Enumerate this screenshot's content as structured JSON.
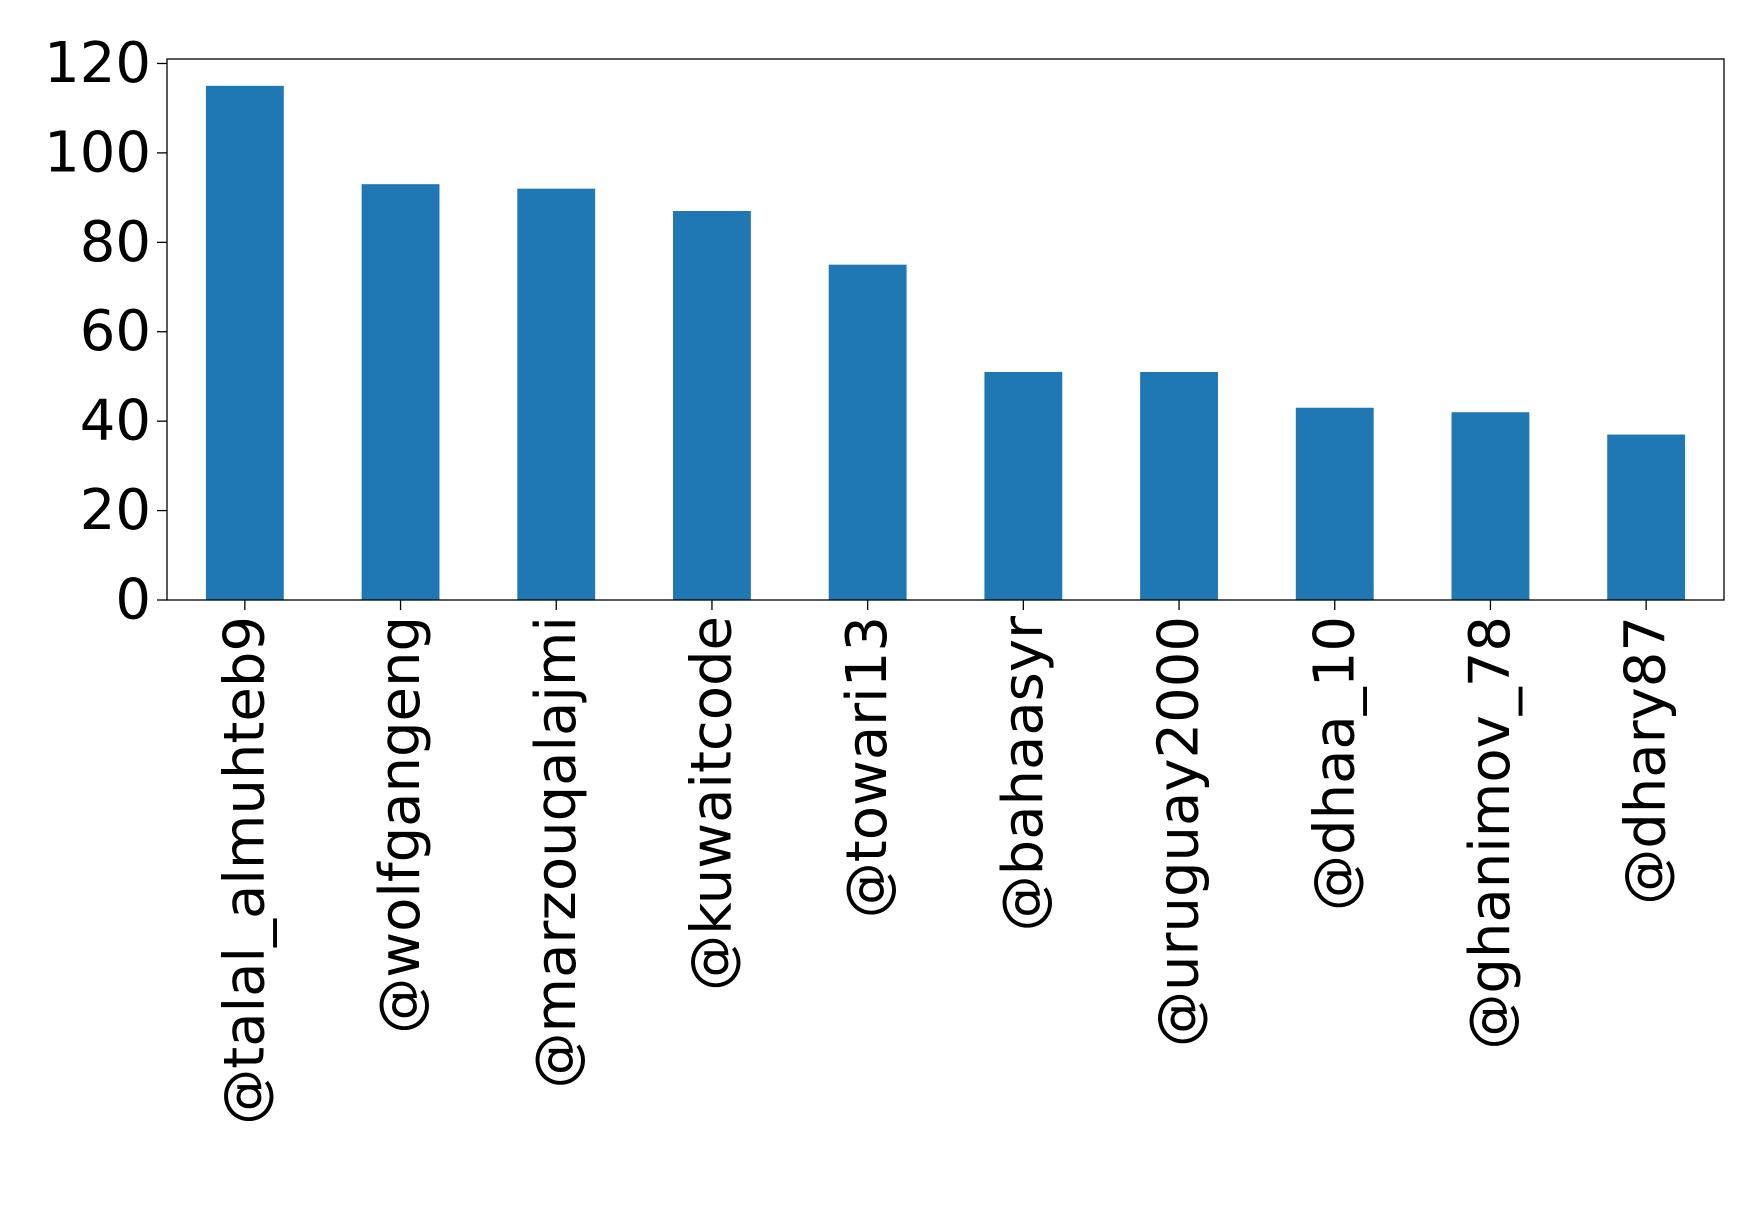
{
  "chart_data": {
    "type": "bar",
    "title": "",
    "xlabel": "",
    "ylabel": "",
    "categories": [
      "@talal_almuhteb9",
      "@wolfgangeng",
      "@marzouqalajmi",
      "@kuwaitcode",
      "@towari13",
      "@bahaasyr",
      "@uruguay2000",
      "@dhaa_10",
      "@ghanimov_78",
      "@dhary87"
    ],
    "values": [
      115,
      93,
      92,
      87,
      75,
      51,
      51,
      43,
      42,
      37
    ],
    "ylim": [
      0,
      121
    ],
    "yticks": [
      0,
      20,
      40,
      60,
      80,
      100,
      120
    ],
    "ytick_labels": [
      "0",
      "20",
      "40",
      "60",
      "80",
      "100",
      "120"
    ],
    "bar_color": "#1f77b4",
    "grid": false,
    "legend": false
  }
}
